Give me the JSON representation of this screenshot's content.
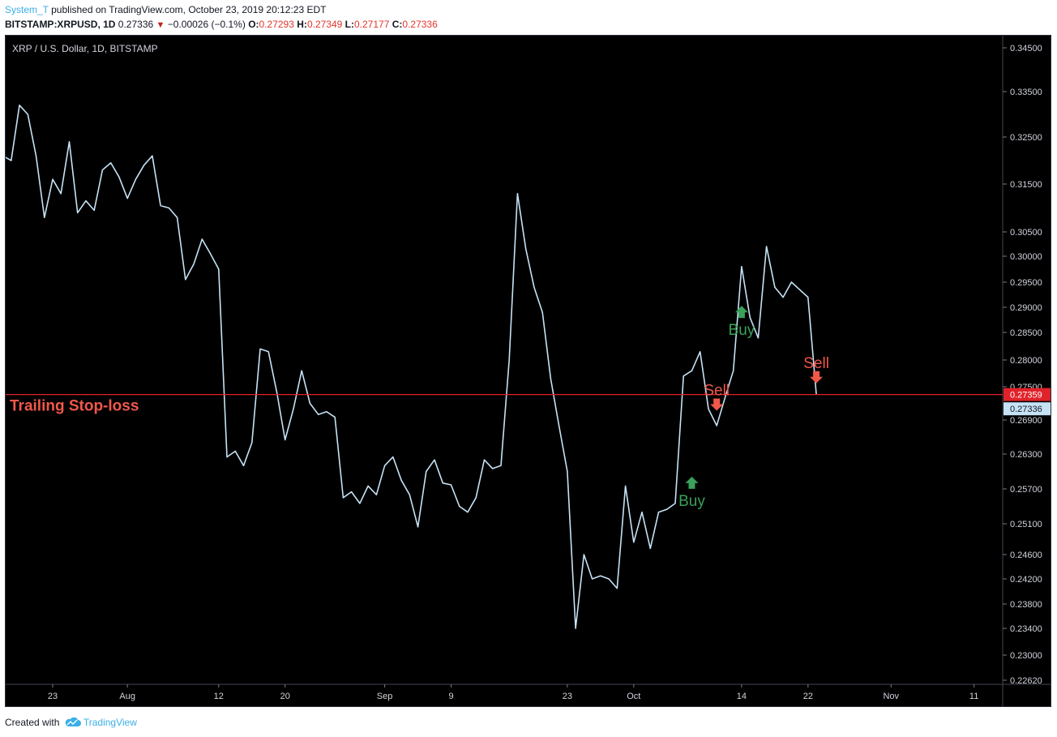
{
  "header": {
    "author": "System_T",
    "published_text": " published on TradingView.com, October 23, 2019 20:12:23 EDT",
    "symbol": "BITSTAMP:XRPUSD, 1D",
    "last": "0.27336",
    "change_arrow": "▼",
    "change": "−0.00026 (−0.1%)",
    "o_label": "O:",
    "o_value": "0.27293",
    "h_label": "H:",
    "h_value": "0.27349",
    "l_label": "L:",
    "l_value": "0.27177",
    "c_label": "C:",
    "c_value": "0.27336"
  },
  "footer": {
    "created_with": "Created with",
    "brand": "TradingView"
  },
  "colors": {
    "background": "#000000",
    "line": "#c6e2f5",
    "buy": "#3aa05a",
    "sell": "#f0584a",
    "stop_line": "#e0222a",
    "price_tag": "#c6e2f5"
  },
  "chart_data": {
    "type": "line",
    "title": "XRP / U.S. Dollar, 1D, BITSTAMP",
    "x_range": [
      "2019-07-16",
      "2019-11-19"
    ],
    "x_ticks": [
      {
        "label": "23",
        "date": "2019-07-23"
      },
      {
        "label": "Aug",
        "date": "2019-08-01"
      },
      {
        "label": "12",
        "date": "2019-08-12"
      },
      {
        "label": "20",
        "date": "2019-08-20"
      },
      {
        "label": "Sep",
        "date": "2019-09-01"
      },
      {
        "label": "9",
        "date": "2019-09-09"
      },
      {
        "label": "23",
        "date": "2019-09-23"
      },
      {
        "label": "Oct",
        "date": "2019-10-01"
      },
      {
        "label": "14",
        "date": "2019-10-14"
      },
      {
        "label": "22",
        "date": "2019-10-22"
      },
      {
        "label": "Nov",
        "date": "2019-11-01"
      },
      {
        "label": "11",
        "date": "2019-11-11"
      }
    ],
    "y_ticks": [
      {
        "label": "0.34500",
        "value": 0.345
      },
      {
        "label": "0.33500",
        "value": 0.335
      },
      {
        "label": "0.32500",
        "value": 0.325
      },
      {
        "label": "0.31500",
        "value": 0.315
      },
      {
        "label": "0.30500",
        "value": 0.305
      },
      {
        "label": "0.30000",
        "value": 0.3
      },
      {
        "label": "0.29500",
        "value": 0.295
      },
      {
        "label": "0.29000",
        "value": 0.29
      },
      {
        "label": "0.28500",
        "value": 0.285
      },
      {
        "label": "0.28000",
        "value": 0.28
      },
      {
        "label": "0.27500",
        "value": 0.275
      },
      {
        "label": "0.26900",
        "value": 0.269
      },
      {
        "label": "0.26300",
        "value": 0.263
      },
      {
        "label": "0.25700",
        "value": 0.257
      },
      {
        "label": "0.25100",
        "value": 0.251
      },
      {
        "label": "0.24600",
        "value": 0.246
      },
      {
        "label": "0.24200",
        "value": 0.242
      },
      {
        "label": "0.23800",
        "value": 0.238
      },
      {
        "label": "0.23400",
        "value": 0.234
      },
      {
        "label": "0.23000",
        "value": 0.23
      },
      {
        "label": "0.22620",
        "value": 0.2262
      }
    ],
    "series": [
      {
        "x": [
          "2019-07-16",
          "2019-07-17",
          "2019-07-18",
          "2019-07-19",
          "2019-07-20",
          "2019-07-21",
          "2019-07-22",
          "2019-07-23",
          "2019-07-24",
          "2019-07-25",
          "2019-07-26",
          "2019-07-27",
          "2019-07-28",
          "2019-07-29",
          "2019-07-30",
          "2019-07-31",
          "2019-08-01",
          "2019-08-02",
          "2019-08-03",
          "2019-08-04",
          "2019-08-05",
          "2019-08-06",
          "2019-08-07",
          "2019-08-08",
          "2019-08-09",
          "2019-08-10",
          "2019-08-11",
          "2019-08-12",
          "2019-08-13",
          "2019-08-14",
          "2019-08-15",
          "2019-08-16",
          "2019-08-17",
          "2019-08-18",
          "2019-08-19",
          "2019-08-20",
          "2019-08-21",
          "2019-08-22",
          "2019-08-23",
          "2019-08-24",
          "2019-08-25",
          "2019-08-26",
          "2019-08-27",
          "2019-08-28",
          "2019-08-29",
          "2019-08-30",
          "2019-08-31",
          "2019-09-01",
          "2019-09-02",
          "2019-09-03",
          "2019-09-04",
          "2019-09-05",
          "2019-09-06",
          "2019-09-07",
          "2019-09-08",
          "2019-09-09",
          "2019-09-10",
          "2019-09-11",
          "2019-09-12",
          "2019-09-13",
          "2019-09-14",
          "2019-09-15",
          "2019-09-16",
          "2019-09-17",
          "2019-09-18",
          "2019-09-19",
          "2019-09-20",
          "2019-09-21",
          "2019-09-22",
          "2019-09-23",
          "2019-09-24",
          "2019-09-25",
          "2019-09-26",
          "2019-09-27",
          "2019-09-28",
          "2019-09-29",
          "2019-09-30",
          "2019-10-01",
          "2019-10-02",
          "2019-10-03",
          "2019-10-04",
          "2019-10-05",
          "2019-10-06",
          "2019-10-07",
          "2019-10-08",
          "2019-10-09",
          "2019-10-10",
          "2019-10-11",
          "2019-10-12",
          "2019-10-13",
          "2019-10-14",
          "2019-10-15",
          "2019-10-16",
          "2019-10-17",
          "2019-10-18",
          "2019-10-19",
          "2019-10-20",
          "2019-10-21",
          "2019-10-22",
          "2019-10-23"
        ],
        "y": [
          0.3125,
          0.321,
          0.32,
          0.332,
          0.33,
          0.321,
          0.308,
          0.316,
          0.313,
          0.324,
          0.309,
          0.3115,
          0.3095,
          0.318,
          0.3195,
          0.3165,
          0.312,
          0.316,
          0.319,
          0.321,
          0.3105,
          0.31,
          0.308,
          0.2955,
          0.2985,
          0.3035,
          0.3005,
          0.2975,
          0.2625,
          0.2635,
          0.261,
          0.265,
          0.282,
          0.2815,
          0.274,
          0.2655,
          0.271,
          0.278,
          0.272,
          0.27,
          0.2705,
          0.2695,
          0.2555,
          0.2565,
          0.2545,
          0.2575,
          0.256,
          0.261,
          0.2625,
          0.2585,
          0.256,
          0.2505,
          0.26,
          0.262,
          0.258,
          0.2577,
          0.254,
          0.253,
          0.2555,
          0.262,
          0.2605,
          0.261,
          0.28,
          0.313,
          0.3015,
          0.294,
          0.289,
          0.2765,
          0.268,
          0.26,
          0.234,
          0.246,
          0.242,
          0.2425,
          0.242,
          0.2405,
          0.2575,
          0.248,
          0.253,
          0.247,
          0.253,
          0.2535,
          0.2545,
          0.277,
          0.278,
          0.2815,
          0.271,
          0.268,
          0.273,
          0.278,
          0.298,
          0.288,
          0.284,
          0.302,
          0.294,
          0.292,
          0.295,
          0.2935,
          0.292,
          0.2736
        ]
      }
    ],
    "annotations": [
      {
        "type": "buy",
        "label": "Buy",
        "x": "2019-10-08",
        "y": 0.258
      },
      {
        "type": "sell",
        "label": "Sell",
        "x": "2019-10-11",
        "y": 0.272
      },
      {
        "type": "buy",
        "label": "Buy",
        "x": "2019-10-14",
        "y": 0.289
      },
      {
        "type": "sell",
        "label": "Sell",
        "x": "2019-10-23",
        "y": 0.277
      }
    ],
    "trailing_stop": {
      "label": "Trailing Stop-loss",
      "value": 0.27359,
      "tag": "0.27359"
    },
    "last_price": {
      "value": 0.27336,
      "tag": "0.27336"
    },
    "grid": false,
    "legend": "top-left"
  }
}
